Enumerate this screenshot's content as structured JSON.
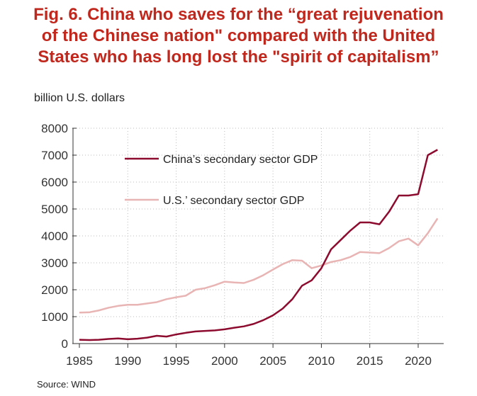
{
  "title_lines": [
    "Fig. 6. China who saves for the “great rejuvenation",
    "of the Chinese nation\" compared with the United",
    "States who has long lost the \"spirit of capitalism”"
  ],
  "source": "Source: WIND",
  "colors": {
    "title": "#c0271d",
    "china": "#8c0b2e",
    "us": "#e8b4b4"
  },
  "chart_data": {
    "type": "line",
    "ylabel": "billion U.S. dollars",
    "xlabel": "",
    "xlim": [
      1985,
      2023
    ],
    "ylim": [
      0,
      8000
    ],
    "xticks": [
      1985,
      1990,
      1995,
      2000,
      2005,
      2010,
      2015,
      2020
    ],
    "yticks": [
      0,
      1000,
      2000,
      3000,
      4000,
      5000,
      6000,
      7000,
      8000
    ],
    "grid": true,
    "legend_position": "top-left",
    "x": [
      1985,
      1986,
      1987,
      1988,
      1989,
      1990,
      1991,
      1992,
      1993,
      1994,
      1995,
      1996,
      1997,
      1998,
      1999,
      2000,
      2001,
      2002,
      2003,
      2004,
      2005,
      2006,
      2007,
      2008,
      2009,
      2010,
      2011,
      2012,
      2013,
      2014,
      2015,
      2016,
      2017,
      2018,
      2019,
      2020,
      2021,
      2022
    ],
    "series": [
      {
        "name": "China’s secondary sector GDP",
        "values": [
          140,
          130,
          140,
          170,
          190,
          160,
          180,
          220,
          290,
          260,
          340,
          400,
          450,
          470,
          490,
          530,
          590,
          640,
          730,
          870,
          1050,
          1300,
          1650,
          2150,
          2350,
          2800,
          3500,
          3850,
          4200,
          4500,
          4500,
          4430,
          4900,
          5500,
          5500,
          5550,
          7000,
          7200
        ]
      },
      {
        "name": "U.S.’ secondary sector GDP",
        "values": [
          1150,
          1160,
          1230,
          1330,
          1400,
          1440,
          1440,
          1490,
          1540,
          1650,
          1720,
          1780,
          2000,
          2060,
          2170,
          2300,
          2270,
          2250,
          2370,
          2540,
          2750,
          2950,
          3100,
          3080,
          2800,
          2900,
          3030,
          3100,
          3220,
          3400,
          3380,
          3360,
          3550,
          3800,
          3900,
          3650,
          4100,
          4650
        ]
      }
    ]
  }
}
